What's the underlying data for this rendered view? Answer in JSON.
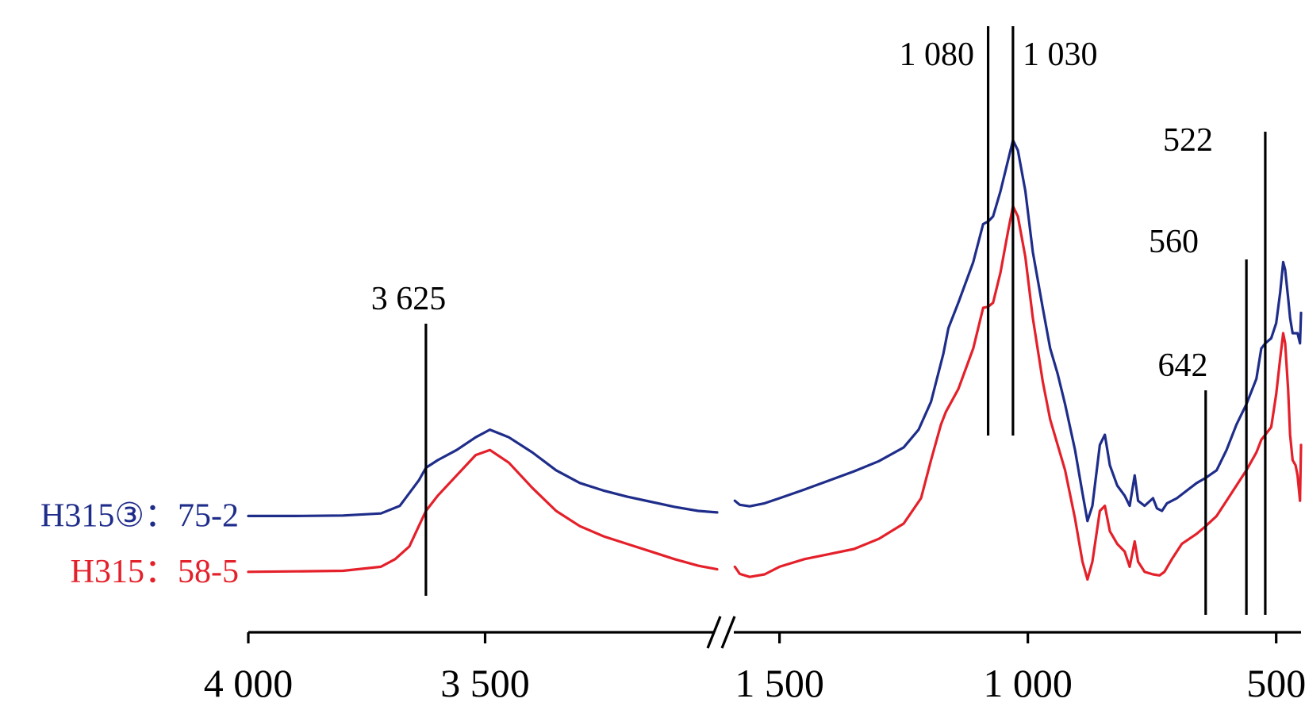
{
  "chart_data": {
    "type": "line",
    "title": "",
    "xlabel": "",
    "ylabel": "",
    "x_axis": {
      "reversed": true,
      "broken": true,
      "segments": [
        {
          "range": [
            4000,
            3000
          ],
          "ticks": [
            {
              "value": 4000,
              "label": "4 000"
            },
            {
              "value": 3500,
              "label": "3 500"
            }
          ]
        },
        {
          "range": [
            1600,
            450
          ],
          "ticks": [
            {
              "value": 1500,
              "label": "1 500"
            },
            {
              "value": 1000,
              "label": "1 000"
            },
            {
              "value": 500,
              "label": "500"
            }
          ]
        }
      ]
    },
    "y_axis": {
      "shown": false,
      "range": [
        0,
        100
      ]
    },
    "grid": false,
    "series": [
      {
        "name": "H315③：75-2",
        "color": "#1f2d8a",
        "segments": [
          [
            [
              4000,
              14
            ],
            [
              3900,
              14
            ],
            [
              3800,
              14.1
            ],
            [
              3720,
              14.5
            ],
            [
              3680,
              16
            ],
            [
              3640,
              21
            ],
            [
              3625,
              23.5
            ],
            [
              3600,
              25
            ],
            [
              3560,
              27
            ],
            [
              3520,
              29.5
            ],
            [
              3490,
              31
            ],
            [
              3450,
              29.5
            ],
            [
              3400,
              26.5
            ],
            [
              3350,
              23
            ],
            [
              3300,
              20.5
            ],
            [
              3250,
              19
            ],
            [
              3200,
              17.8
            ],
            [
              3150,
              16.8
            ],
            [
              3100,
              15.8
            ],
            [
              3050,
              15
            ],
            [
              3010,
              14.7
            ]
          ],
          [
            [
              1590,
              17
            ],
            [
              1580,
              16.2
            ],
            [
              1560,
              15.9
            ],
            [
              1530,
              16.5
            ],
            [
              1500,
              17.5
            ],
            [
              1450,
              19.2
            ],
            [
              1400,
              21
            ],
            [
              1350,
              22.8
            ],
            [
              1300,
              24.8
            ],
            [
              1250,
              27.5
            ],
            [
              1220,
              31
            ],
            [
              1195,
              36.5
            ],
            [
              1170,
              46
            ],
            [
              1160,
              51
            ],
            [
              1140,
              56
            ],
            [
              1110,
              64
            ],
            [
              1090,
              71.5
            ],
            [
              1080,
              72
            ],
            [
              1070,
              73
            ],
            [
              1055,
              78
            ],
            [
              1040,
              84
            ],
            [
              1030,
              88
            ],
            [
              1020,
              86
            ],
            [
              1005,
              78
            ],
            [
              990,
              66
            ],
            [
              970,
              55
            ],
            [
              955,
              47
            ],
            [
              940,
              42
            ],
            [
              925,
              36
            ],
            [
              905,
              27
            ],
            [
              890,
              18.5
            ],
            [
              880,
              13
            ],
            [
              870,
              16
            ],
            [
              855,
              28
            ],
            [
              845,
              30
            ],
            [
              835,
              24
            ],
            [
              820,
              20
            ],
            [
              805,
              18
            ],
            [
              795,
              16
            ],
            [
              785,
              22
            ],
            [
              778,
              17
            ],
            [
              765,
              16
            ],
            [
              748,
              17.5
            ],
            [
              740,
              15.5
            ],
            [
              730,
              15
            ],
            [
              720,
              16.5
            ],
            [
              700,
              17.5
            ],
            [
              680,
              19
            ],
            [
              660,
              20.5
            ],
            [
              642,
              21.5
            ],
            [
              620,
              23
            ],
            [
              600,
              27
            ],
            [
              580,
              32
            ],
            [
              560,
              36
            ],
            [
              540,
              41
            ],
            [
              530,
              47
            ],
            [
              522,
              48
            ],
            [
              510,
              49
            ],
            [
              500,
              52
            ],
            [
              492,
              58
            ],
            [
              486,
              64
            ],
            [
              482,
              62.5
            ],
            [
              476,
              57
            ],
            [
              472,
              53
            ],
            [
              467,
              50
            ],
            [
              461,
              50
            ],
            [
              457,
              50
            ],
            [
              452,
              48
            ],
            [
              450,
              54
            ]
          ]
        ]
      },
      {
        "name": "H315：58-5",
        "color": "#e4202a",
        "segments": [
          [
            [
              4000,
              3
            ],
            [
              3900,
              3.1
            ],
            [
              3800,
              3.2
            ],
            [
              3720,
              4
            ],
            [
              3690,
              5.5
            ],
            [
              3660,
              8
            ],
            [
              3640,
              12
            ],
            [
              3625,
              15
            ],
            [
              3600,
              18
            ],
            [
              3560,
              22
            ],
            [
              3520,
              26
            ],
            [
              3490,
              27
            ],
            [
              3450,
              24.5
            ],
            [
              3400,
              19.5
            ],
            [
              3350,
              15
            ],
            [
              3300,
              12
            ],
            [
              3250,
              10
            ],
            [
              3200,
              8.5
            ],
            [
              3150,
              7
            ],
            [
              3100,
              5.5
            ],
            [
              3050,
              4.2
            ],
            [
              3010,
              3.5
            ]
          ],
          [
            [
              1590,
              4
            ],
            [
              1580,
              2.6
            ],
            [
              1560,
              2
            ],
            [
              1530,
              2.5
            ],
            [
              1500,
              4
            ],
            [
              1450,
              5.5
            ],
            [
              1400,
              6.5
            ],
            [
              1350,
              7.5
            ],
            [
              1300,
              9.5
            ],
            [
              1250,
              12.5
            ],
            [
              1215,
              17.5
            ],
            [
              1195,
              25
            ],
            [
              1175,
              32
            ],
            [
              1165,
              34.5
            ],
            [
              1140,
              39
            ],
            [
              1110,
              47
            ],
            [
              1090,
              55
            ],
            [
              1080,
              55.2
            ],
            [
              1070,
              56
            ],
            [
              1055,
              62
            ],
            [
              1040,
              70
            ],
            [
              1030,
              75
            ],
            [
              1020,
              73
            ],
            [
              1005,
              65
            ],
            [
              990,
              53
            ],
            [
              970,
              40.5
            ],
            [
              955,
              33
            ],
            [
              940,
              28
            ],
            [
              925,
              23
            ],
            [
              905,
              13.5
            ],
            [
              890,
              5
            ],
            [
              880,
              1.5
            ],
            [
              870,
              5
            ],
            [
              855,
              15
            ],
            [
              845,
              16
            ],
            [
              835,
              11
            ],
            [
              820,
              8.5
            ],
            [
              805,
              7
            ],
            [
              795,
              4
            ],
            [
              785,
              9
            ],
            [
              778,
              5
            ],
            [
              765,
              3
            ],
            [
              748,
              2.5
            ],
            [
              735,
              2.3
            ],
            [
              725,
              3
            ],
            [
              710,
              5.5
            ],
            [
              690,
              8.5
            ],
            [
              660,
              10.5
            ],
            [
              642,
              12
            ],
            [
              620,
              14
            ],
            [
              600,
              17
            ],
            [
              580,
              20
            ],
            [
              560,
              23
            ],
            [
              540,
              26.5
            ],
            [
              530,
              29
            ],
            [
              522,
              30
            ],
            [
              510,
              31.5
            ],
            [
              500,
              38
            ],
            [
              492,
              45
            ],
            [
              486,
              50
            ],
            [
              482,
              48
            ],
            [
              476,
              39
            ],
            [
              472,
              30
            ],
            [
              467,
              25
            ],
            [
              461,
              24
            ],
            [
              457,
              22
            ],
            [
              452,
              17
            ],
            [
              450,
              28
            ]
          ]
        ]
      }
    ],
    "annotations": [
      {
        "label": "3 625",
        "x": 3625
      },
      {
        "label": "1 080",
        "x": 1080
      },
      {
        "label": "1 030",
        "x": 1030
      },
      {
        "label": "642",
        "x": 642
      },
      {
        "label": "560",
        "x": 560
      },
      {
        "label": "522",
        "x": 522
      }
    ],
    "legend": "inline-left"
  }
}
